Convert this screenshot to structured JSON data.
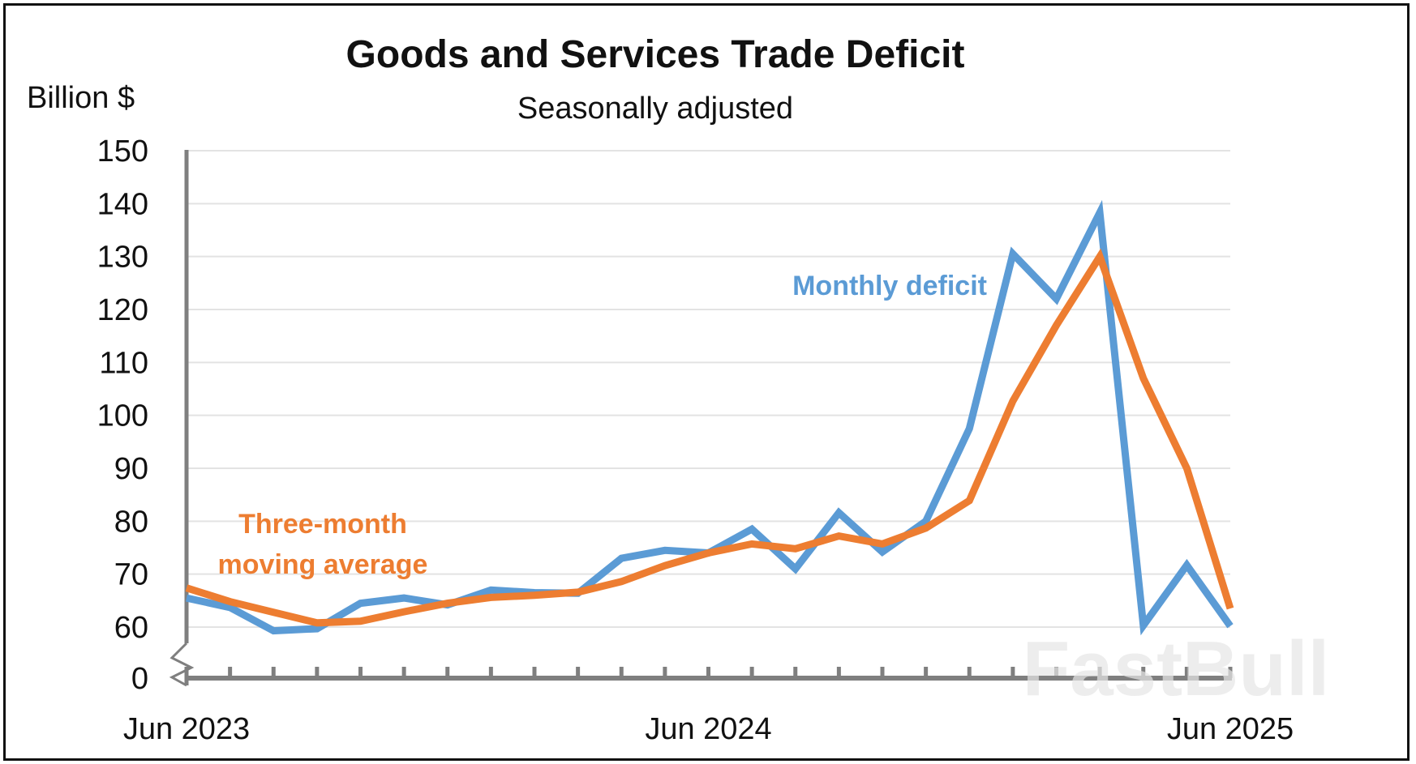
{
  "chart_data": {
    "type": "line",
    "title": "Goods and Services Trade Deficit",
    "subtitle": "Seasonally adjusted",
    "ylabel": "Billion $",
    "xlabel": "",
    "ylim": [
      60,
      150
    ],
    "y_axis_break": true,
    "y_ticks": [
      "150",
      "140",
      "130",
      "120",
      "110",
      "100",
      "90",
      "80",
      "70",
      "60",
      "0"
    ],
    "x_ticks": [
      "Jun 2023",
      "Jun 2024",
      "Jun 2025"
    ],
    "x": [
      "2023-06",
      "2023-07",
      "2023-08",
      "2023-09",
      "2023-10",
      "2023-11",
      "2023-12",
      "2024-01",
      "2024-02",
      "2024-03",
      "2024-04",
      "2024-05",
      "2024-06",
      "2024-07",
      "2024-08",
      "2024-09",
      "2024-10",
      "2024-11",
      "2024-12",
      "2025-01",
      "2025-02",
      "2025-03",
      "2025-04",
      "2025-05",
      "2025-06"
    ],
    "grid": true,
    "series": [
      {
        "name": "Monthly deficit",
        "color": "#5b9bd5",
        "values": [
          65.5,
          63.7,
          59.3,
          59.7,
          64.5,
          65.5,
          64.2,
          67.0,
          66.5,
          66.4,
          73.0,
          74.5,
          74.0,
          78.5,
          71.0,
          81.6,
          74.2,
          80.0,
          97.5,
          130.5,
          122.0,
          138.3,
          60.3,
          71.7,
          60.2
        ]
      },
      {
        "name": "Three-month moving average",
        "label_lines": [
          "Three-month",
          "moving average"
        ],
        "color": "#ed7d31",
        "values": [
          67.4,
          64.8,
          62.8,
          60.8,
          61.1,
          62.9,
          64.5,
          65.6,
          66.0,
          66.6,
          68.6,
          71.6,
          74.0,
          75.7,
          74.8,
          77.2,
          75.7,
          78.7,
          83.9,
          102.7,
          117.0,
          130.0,
          107.0,
          90.0,
          63.5
        ]
      }
    ]
  },
  "watermark": "FastBull"
}
